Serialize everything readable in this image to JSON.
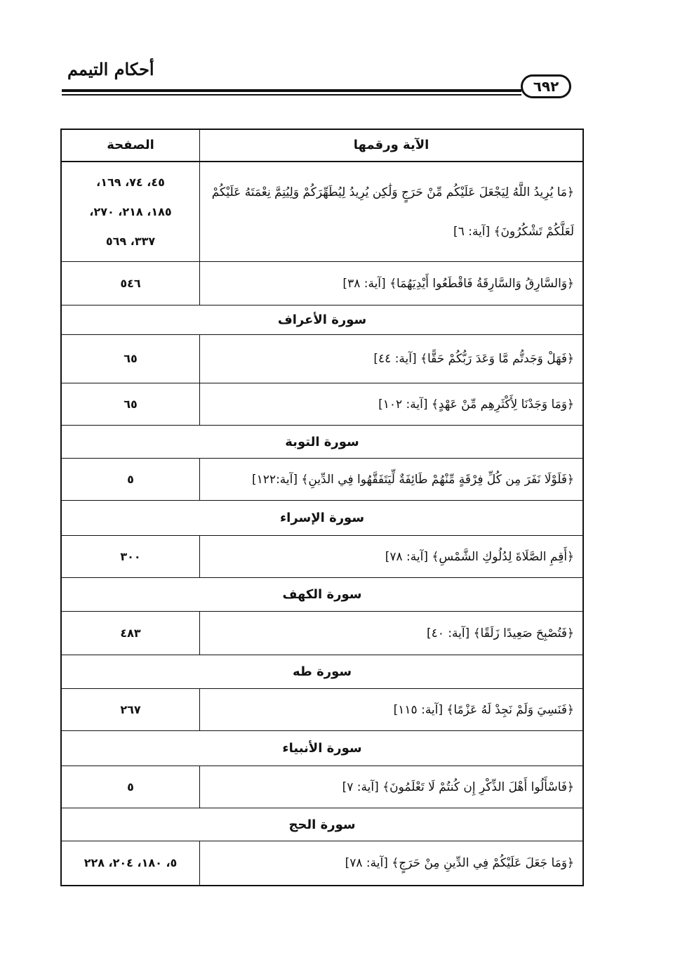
{
  "header": {
    "title": "أحكام التيمم",
    "page_number": "٦٩٢"
  },
  "table": {
    "columns": [
      "الآية ورقمها",
      "الصفحة"
    ],
    "rows": [
      {
        "verse": "﴿مَا يُرِيدُ اللَّهُ لِيَجْعَلَ عَلَيْكُم مِّنْ حَرَجٍ وَلَٰكِن يُرِيدُ لِيُطَهِّرَكُمْ وَلِيُتِمَّ نِعْمَتَهُ عَلَيْكُمْ لَعَلَّكُمْ تَشْكُرُونَ﴾ [آية: ٦]",
        "pages": [
          "٤٥، ٧٤، ١٦٩،",
          "١٨٥، ٢١٨، ٢٧٠،",
          "٣٣٧، ٥٦٩"
        ]
      },
      {
        "verse": "﴿وَالسَّارِقُ وَالسَّارِقَةُ فَاقْطَعُوا أَيْدِيَهُمَا﴾ [آية: ٣٨]",
        "pages": [
          "٥٤٦"
        ]
      },
      {
        "section": "سورة الأعراف"
      },
      {
        "verse": "﴿فَهَلْ وَجَدتُّم مَّا وَعَدَ رَبُّكُمْ حَقًّا﴾ [آية: ٤٤]",
        "pages": [
          "٦٥"
        ]
      },
      {
        "verse": "﴿وَمَا وَجَدْنَا لِأَكْثَرِهِم مِّنْ عَهْدٍ﴾ [آية: ١٠٢]",
        "pages": [
          "٦٥"
        ]
      },
      {
        "section": "سورة التوبة"
      },
      {
        "verse": "﴿فَلَوْلَا نَفَرَ مِن كُلِّ فِرْقَةٍ مِّنْهُمْ طَائِفَةٌ لِّيَتَفَقَّهُوا فِي الدِّينِ﴾ [آية:١٢٢]",
        "pages": [
          "٥"
        ]
      },
      {
        "section": "سورة الإسراء"
      },
      {
        "verse": "﴿أَقِمِ الصَّلَاةَ لِدُلُوكِ الشَّمْسِ﴾ [آية: ٧٨]",
        "pages": [
          "٣٠٠"
        ]
      },
      {
        "section": "سورة الكهف"
      },
      {
        "verse": "﴿فَتُصْبِحَ صَعِيدًا زَلَقًا﴾ [آية: ٤٠]",
        "pages": [
          "٤٨٣"
        ]
      },
      {
        "section": "سورة طه"
      },
      {
        "verse": "﴿فَنَسِيَ وَلَمْ نَجِدْ لَهُ عَزْمًا﴾ [آية: ١١٥]",
        "pages": [
          "٢٦٧"
        ]
      },
      {
        "section": "سورة الأنبياء"
      },
      {
        "verse": "﴿فَاسْأَلُوا أَهْلَ الذِّكْرِ إِن كُنتُمْ لَا تَعْلَمُونَ﴾ [آية: ٧]",
        "pages": [
          "٥"
        ]
      },
      {
        "section": "سورة الحج"
      },
      {
        "verse": "﴿وَمَا جَعَلَ عَلَيْكُمْ فِي الدِّينِ مِنْ حَرَجٍ﴾ [آية: ٧٨]",
        "pages": [
          "٥، ١٨٠، ٢٠٤، ٢٢٨"
        ]
      }
    ]
  }
}
